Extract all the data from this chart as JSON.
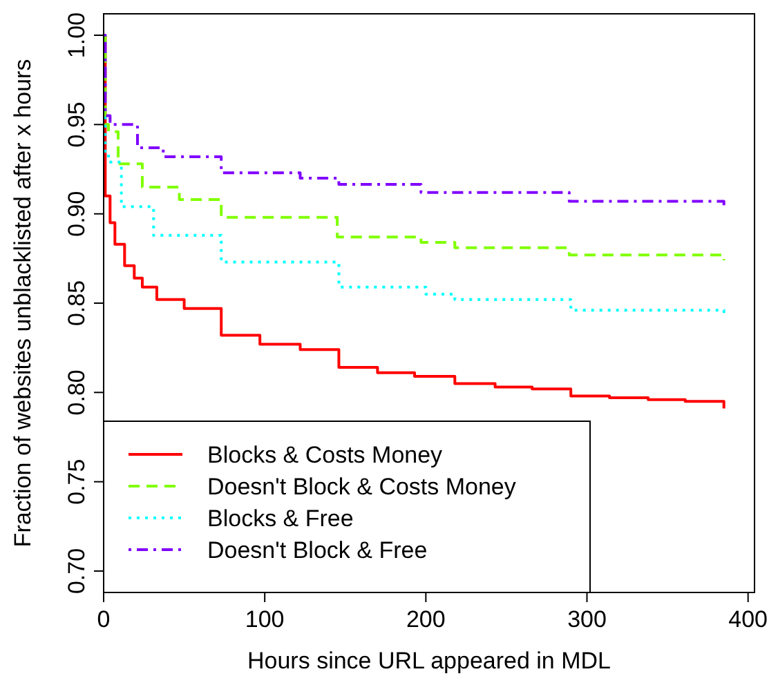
{
  "chart_data": {
    "type": "step",
    "xlabel": "Hours since URL appeared in MDL",
    "ylabel": "Fraction of websites unblacklisted after x hours",
    "xlim": [
      0,
      404
    ],
    "ylim": [
      0.688,
      1.012
    ],
    "xticks": [
      0,
      100,
      200,
      300,
      400
    ],
    "yticks": [
      {
        "value": 0.7,
        "label": "0.70"
      },
      {
        "value": 0.75,
        "label": "0.75"
      },
      {
        "value": 0.8,
        "label": "0.80"
      },
      {
        "value": 0.85,
        "label": "0.85"
      },
      {
        "value": 0.9,
        "label": "0.90"
      },
      {
        "value": 0.95,
        "label": "0.95"
      },
      {
        "value": 1.0,
        "label": "1.00"
      }
    ],
    "grid": false,
    "legend": "bottom left",
    "series": [
      {
        "name": "Blocks & Costs Money",
        "color": "#ff0000",
        "line_style": "solid",
        "x": [
          0,
          1,
          4,
          7,
          13,
          19,
          24,
          33,
          50,
          73,
          97,
          122,
          146,
          170,
          193,
          218,
          243,
          266,
          290,
          314,
          338,
          361,
          385
        ],
        "values": [
          1.0,
          0.91,
          0.895,
          0.883,
          0.871,
          0.864,
          0.859,
          0.852,
          0.847,
          0.832,
          0.827,
          0.824,
          0.814,
          0.811,
          0.809,
          0.805,
          0.803,
          0.802,
          0.798,
          0.797,
          0.796,
          0.795,
          0.791
        ]
      },
      {
        "name": "Doesn't Block & Costs Money",
        "color": "#80ff00",
        "line_style": "dashed",
        "x": [
          0,
          1,
          3,
          9,
          24,
          47,
          73,
          145,
          197,
          218,
          289,
          385
        ],
        "values": [
          1.0,
          0.95,
          0.946,
          0.928,
          0.915,
          0.908,
          0.898,
          0.887,
          0.884,
          0.881,
          0.877,
          0.874
        ]
      },
      {
        "name": "Blocks & Free",
        "color": "#00ffff",
        "line_style": "dotted",
        "x": [
          0,
          1,
          3,
          11,
          31,
          73,
          146,
          200,
          218,
          290,
          385
        ],
        "values": [
          1.0,
          0.935,
          0.929,
          0.904,
          0.888,
          0.873,
          0.859,
          0.855,
          0.852,
          0.846,
          0.843
        ]
      },
      {
        "name": "Doesn't Block & Free",
        "color": "#8000ff",
        "line_style": "dashdot",
        "x": [
          0,
          1,
          4,
          21,
          37,
          73,
          122,
          146,
          197,
          289,
          385
        ],
        "values": [
          1.0,
          0.955,
          0.95,
          0.937,
          0.932,
          0.923,
          0.92,
          0.9165,
          0.912,
          0.907,
          0.904
        ]
      }
    ]
  }
}
